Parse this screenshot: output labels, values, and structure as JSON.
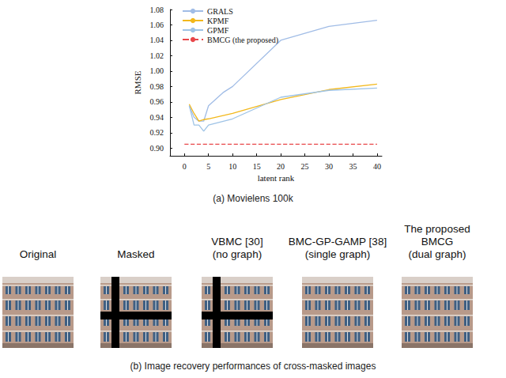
{
  "chart_data": {
    "type": "line",
    "title": "(a) Movielens 100k",
    "x_label": "latent rank",
    "y_label": "RMSE",
    "xlim": [
      -3,
      41
    ],
    "xticks": [
      0,
      5,
      10,
      15,
      20,
      25,
      30,
      35,
      40
    ],
    "ylim": [
      0.89,
      1.08
    ],
    "yticks": [
      {
        "value": 0.9,
        "label": "0.90"
      },
      0.92,
      0.94,
      0.96,
      0.98,
      {
        "value": 1,
        "label": "1.00"
      },
      1.02,
      1.04,
      1.06,
      1.08
    ],
    "legend": "upper left",
    "grid": false,
    "series": [
      {
        "name": "GRALS",
        "color": "#a0bce6",
        "line_style": "solid",
        "x": [
          1,
          2,
          3,
          4,
          5,
          8,
          10,
          20,
          30,
          40
        ],
        "values": [
          0.955,
          0.94,
          0.935,
          0.935,
          0.955,
          0.972,
          0.98,
          1.04,
          1.058,
          1.066
        ]
      },
      {
        "name": "KPMF",
        "color": "#f2b81c",
        "line_style": "solid",
        "x": [
          1,
          2,
          3,
          4,
          5,
          10,
          20,
          30,
          40
        ],
        "values": [
          0.957,
          0.945,
          0.935,
          0.937,
          0.938,
          0.945,
          0.963,
          0.976,
          0.983
        ]
      },
      {
        "name": "GPMF",
        "color": "#9ec3e6",
        "line_style": "solid",
        "x": [
          1,
          2,
          3,
          4,
          5,
          10,
          20,
          30,
          40
        ],
        "values": [
          0.955,
          0.93,
          0.93,
          0.922,
          0.93,
          0.938,
          0.966,
          0.975,
          0.978
        ]
      },
      {
        "name": "BMCG (the proposed)",
        "color": "#e8474a",
        "line_style": "dashed",
        "x": [
          0,
          40
        ],
        "values": [
          0.905,
          0.905
        ]
      }
    ]
  },
  "figure_b": {
    "caption": "(b) Image recovery performances of cross-masked images",
    "panels": [
      {
        "label": [
          "Original"
        ]
      },
      {
        "label": [
          "Masked"
        ]
      },
      {
        "label": [
          "VBMC [30]",
          "(no graph)"
        ]
      },
      {
        "label": [
          "BMC-GP-GAMP [38]",
          "(single graph)"
        ]
      },
      {
        "label": [
          "The proposed",
          "BMCG",
          "(dual graph)"
        ]
      }
    ]
  }
}
